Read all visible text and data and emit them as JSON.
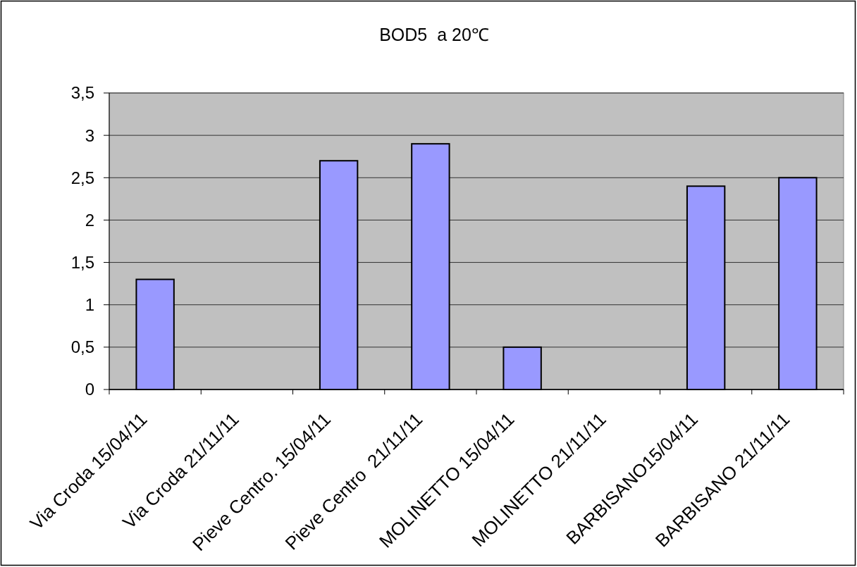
{
  "chart_data": {
    "type": "bar",
    "title": "BOD5  a 20℃",
    "categories": [
      "Via Croda 15/04/11",
      "Via Croda 21/11/11",
      "Pieve Centro. 15/04/11",
      "Pieve Centro  21/11/11",
      "MOLINETTO 15/04/11",
      "MOLINETTO 21/11/11",
      "BARBISANO15/04/11",
      "BARBISANO 21/11/11"
    ],
    "values": [
      1.3,
      null,
      2.7,
      2.9,
      0.5,
      null,
      2.4,
      2.5
    ],
    "color": "#9999ff",
    "ylim": [
      0,
      3.5
    ],
    "yticks": [
      0,
      {
        "value": 0.5,
        "label": "0,5"
      },
      1,
      {
        "value": 1.5,
        "label": "1,5"
      },
      2,
      {
        "value": 2.5,
        "label": "2,5"
      },
      3,
      {
        "value": 3.5,
        "label": "3,5"
      }
    ],
    "grid": "y"
  }
}
